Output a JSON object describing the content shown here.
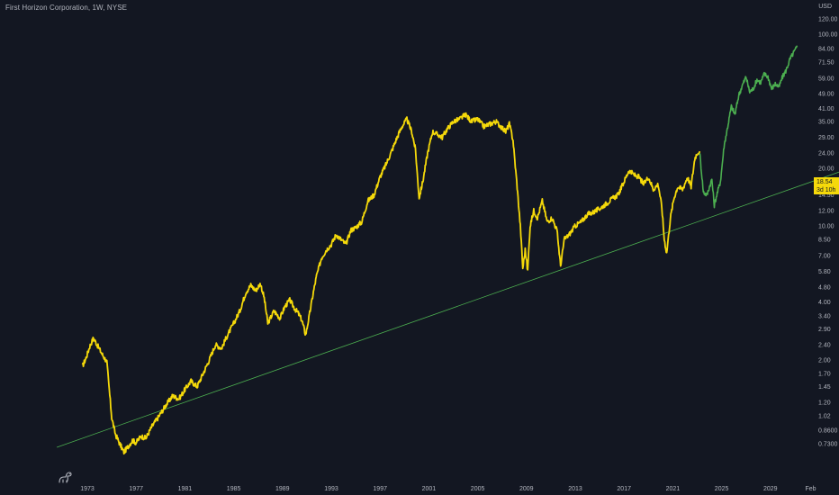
{
  "header": {
    "symbol_line": "First Horizon Corporation, 1W, NYSE",
    "currency": "USD"
  },
  "price_badge": {
    "price": "18.54",
    "countdown": "3d 10h"
  },
  "colors": {
    "background": "#131722",
    "history_line": "#f5d90a",
    "forecast_line": "#4caf50",
    "trendline": "#4caf50",
    "axis_text": "#b2b5be",
    "badge": "#f5d90a"
  },
  "icons": {
    "logo": "tradingview-dino-icon"
  },
  "chart_data": {
    "type": "line",
    "y_scale": "log",
    "grid": false,
    "y_ticks": [
      "120.00",
      "100.00",
      "84.00",
      "71.50",
      "59.00",
      "49.00",
      "41.00",
      "35.00",
      "29.00",
      "24.00",
      "20.00",
      "14.50",
      "12.00",
      "10.00",
      "8.50",
      "7.00",
      "5.80",
      "4.80",
      "4.00",
      "3.40",
      "2.90",
      "2.40",
      "2.00",
      "1.70",
      "1.45",
      "1.20",
      "1.02",
      "0.8600",
      "0.7300"
    ],
    "x_ticks": [
      "1973",
      "1977",
      "1981",
      "1985",
      "1989",
      "1993",
      "1997",
      "2001",
      "2005",
      "2009",
      "2013",
      "2017",
      "2021",
      "2025",
      "2029",
      "Feb"
    ],
    "x_tick_years": [
      1973,
      1977,
      1981,
      1985,
      1989,
      1993,
      1997,
      2001,
      2005,
      2009,
      2013,
      2017,
      2021,
      2025,
      2029,
      2032.3
    ],
    "series": [
      {
        "role": "history",
        "x": [
          1972.6,
          1972.9,
          1973.2,
          1973.5,
          1973.8,
          1974.2,
          1974.6,
          1975.0,
          1975.3,
          1975.7,
          1976.0,
          1976.3,
          1976.7,
          1977.0,
          1977.4,
          1977.8,
          1978.3,
          1978.8,
          1979.4,
          1980.0,
          1980.5,
          1981.0,
          1981.5,
          1982.0,
          1982.5,
          1983.0,
          1983.5,
          1984.0,
          1984.5,
          1985.0,
          1985.5,
          1986.0,
          1986.4,
          1986.8,
          1987.2,
          1987.5,
          1987.8,
          1988.3,
          1988.8,
          1989.2,
          1989.6,
          1990.0,
          1990.3,
          1990.6,
          1990.9,
          1991.2,
          1991.5,
          1991.8,
          1992.2,
          1992.6,
          1993.0,
          1993.4,
          1993.8,
          1994.2,
          1994.6,
          1995.0,
          1995.5,
          1996.0,
          1996.5,
          1997.0,
          1997.5,
          1998.0,
          1998.4,
          1998.8,
          1999.2,
          1999.6,
          1999.9,
          2000.2,
          2000.5,
          2000.9,
          2001.3,
          2001.7,
          2002.1,
          2002.5,
          2003.0,
          2003.5,
          2004.0,
          2004.5,
          2005.0,
          2005.5,
          2006.0,
          2006.5,
          2006.9,
          2007.3,
          2007.6,
          2007.9,
          2008.2,
          2008.5,
          2008.7,
          2008.9,
          2009.1,
          2009.3,
          2009.6,
          2009.9,
          2010.3,
          2010.7,
          2011.1,
          2011.5,
          2011.8,
          2012.1,
          2012.5,
          2013.0,
          2013.5,
          2014.0,
          2014.5,
          2015.0,
          2015.5,
          2016.0,
          2016.5,
          2017.0,
          2017.4,
          2017.8,
          2018.2,
          2018.6,
          2019.0,
          2019.4,
          2019.8,
          2020.1,
          2020.3,
          2020.5,
          2020.8,
          2021.1,
          2021.4,
          2021.8,
          2022.2,
          2022.5,
          2022.8,
          2023.0,
          2023.2
        ],
        "y": [
          1.85,
          2.05,
          2.35,
          2.6,
          2.4,
          2.15,
          1.95,
          1.0,
          0.82,
          0.72,
          0.66,
          0.7,
          0.76,
          0.74,
          0.8,
          0.78,
          0.9,
          1.0,
          1.15,
          1.3,
          1.25,
          1.4,
          1.55,
          1.45,
          1.7,
          2.0,
          2.4,
          2.3,
          2.7,
          3.1,
          3.6,
          4.5,
          4.9,
          4.6,
          5.0,
          4.2,
          3.1,
          3.6,
          3.3,
          3.8,
          4.1,
          3.7,
          3.5,
          3.2,
          2.7,
          3.4,
          4.4,
          5.5,
          6.8,
          7.5,
          8.0,
          9.0,
          8.5,
          8.0,
          9.5,
          9.8,
          10.5,
          13.5,
          14.5,
          18.0,
          21.0,
          25.0,
          29.0,
          33.0,
          36.0,
          31.0,
          25.0,
          14.0,
          17.0,
          24.0,
          31.0,
          30.0,
          29.0,
          32.0,
          35.0,
          36.0,
          38.0,
          35.0,
          36.0,
          33.0,
          34.0,
          35.0,
          33.0,
          31.0,
          34.0,
          28.0,
          17.0,
          10.0,
          6.0,
          7.5,
          5.8,
          10.0,
          12.0,
          11.0,
          13.5,
          10.5,
          11.0,
          9.5,
          6.2,
          8.5,
          9.0,
          10.0,
          10.5,
          11.5,
          11.8,
          12.3,
          13.0,
          13.8,
          14.5,
          17.0,
          19.5,
          18.5,
          18.0,
          16.5,
          18.0,
          15.5,
          16.5,
          12.5,
          8.5,
          7.2,
          11.0,
          14.0,
          16.0,
          15.5,
          18.0,
          16.0,
          22.5,
          24.0,
          24.5
        ]
      },
      {
        "role": "forecast",
        "x": [
          2023.2,
          2023.5,
          2023.8,
          2024.0,
          2024.2,
          2024.4,
          2024.6,
          2024.9,
          2025.2,
          2025.5,
          2025.8,
          2026.1,
          2026.4,
          2026.7,
          2027.0,
          2027.3,
          2027.6,
          2027.9,
          2028.2,
          2028.5,
          2028.8,
          2029.1,
          2029.4,
          2029.7,
          2030.0,
          2030.3,
          2030.6,
          2030.9,
          2031.2
        ],
        "y": [
          24.5,
          15.0,
          14.5,
          16.0,
          17.5,
          12.8,
          14.5,
          17.0,
          26.0,
          33.0,
          42.0,
          38.0,
          48.0,
          54.0,
          60.0,
          50.0,
          52.0,
          58.0,
          56.0,
          62.0,
          60.0,
          52.0,
          55.0,
          53.0,
          60.0,
          65.0,
          74.0,
          80.0,
          86.0
        ]
      }
    ],
    "trendline": {
      "x": [
        1970.5,
        2036.0
      ],
      "y": [
        0.7,
        20.5
      ]
    }
  }
}
